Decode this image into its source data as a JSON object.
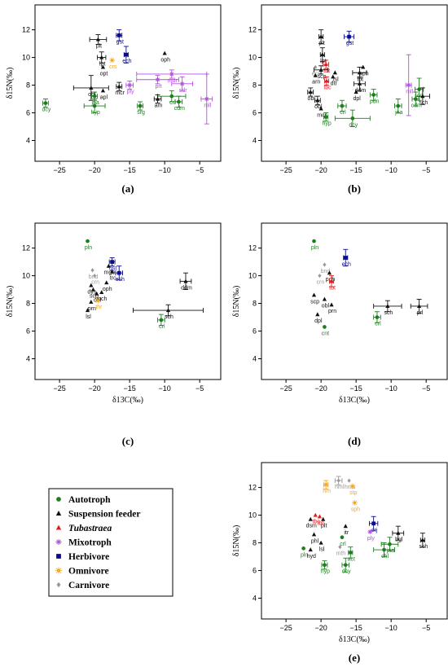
{
  "figure": {
    "x_axis_label": "δ13C(‰)",
    "y_axis_label": "δ15N(‰)",
    "x_ticks": [
      -25,
      -20,
      -15,
      -10,
      -5
    ],
    "y_ticks": [
      4,
      6,
      8,
      10,
      12
    ]
  },
  "colors": {
    "Autotroph": "#1e7d1e",
    "Suspension feeder": "#111111",
    "Tubastraea": "#e41a1c",
    "Mixotroph": "#b44fe0",
    "Herbivore": "#0a0a8a",
    "Omnivore": "#f5a623",
    "Carnivore": "#9a9a9a"
  },
  "legend": [
    {
      "group": "Autotroph",
      "label": "Autotroph",
      "icon": "filled-circle-icon",
      "italic": false
    },
    {
      "group": "Suspension feeder",
      "label": "Suspension feeder",
      "icon": "filled-triangle-icon",
      "italic": false
    },
    {
      "group": "Tubastraea",
      "label": "Tubastraea",
      "icon": "filled-triangle-icon",
      "italic": true
    },
    {
      "group": "Mixotroph",
      "label": "Mixotroph",
      "icon": "asterisk-icon",
      "italic": false
    },
    {
      "group": "Herbivore",
      "label": "Herbivore",
      "icon": "filled-square-icon",
      "italic": false
    },
    {
      "group": "Omnivore",
      "label": "Omnivore",
      "icon": "sun-icon",
      "italic": false
    },
    {
      "group": "Carnivore",
      "label": "Carnivore",
      "icon": "diamond-icon",
      "italic": false
    }
  ],
  "chart_data": [
    {
      "type": "scatter",
      "panel": "(a)",
      "xlim": [
        -28.5,
        -2
      ],
      "ylim": [
        2.5,
        13.8
      ],
      "points": [
        {
          "label": "plt",
          "g": "Suspension feeder",
          "x": -19.5,
          "y": 11.3,
          "xe": 1.2,
          "ye": 0.35
        },
        {
          "label": "gst",
          "g": "Herbivore",
          "x": -16.5,
          "y": 11.6,
          "xe": 0.4,
          "ye": 0.4
        },
        {
          "label": "lpt",
          "g": "Suspension feeder",
          "x": -19,
          "y": 10,
          "xe": 0.6,
          "ye": 0.4
        },
        {
          "label": "crs",
          "g": "Omnivore",
          "x": -17.5,
          "y": 9.8
        },
        {
          "label": "ech",
          "g": "Herbivore",
          "x": -15.5,
          "y": 10.2,
          "xe": 0.3,
          "ye": 0.6
        },
        {
          "label": "oph",
          "g": "Suspension feeder",
          "x": -10,
          "y": 10.3
        },
        {
          "label": "opt",
          "g": "Suspension feeder",
          "x": -18.8,
          "y": 9.3
        },
        {
          "label": "mdr",
          "g": "Mixotroph",
          "x": -9,
          "y": 8.8,
          "xe": 5,
          "ye": 0.3
        },
        {
          "label": "obl",
          "g": "Suspension feeder",
          "x": -20.5,
          "y": 7.8,
          "xe": 2.5,
          "ye": 0.9
        },
        {
          "label": "mcr",
          "g": "Suspension feeder",
          "x": -16.5,
          "y": 7.9,
          "xe": 0.4,
          "ye": 0.3
        },
        {
          "label": "sdr",
          "g": "Mixotroph",
          "x": -7.5,
          "y": 8.1,
          "xe": 1.5,
          "ye": 0.5
        },
        {
          "label": "prt",
          "g": "Mixotroph",
          "x": -11,
          "y": 8.4,
          "xe": 3,
          "ye": 0.3
        },
        {
          "label": "ply",
          "g": "Mixotroph",
          "x": -15,
          "y": 8,
          "xe": 0.5,
          "ye": 0.3
        },
        {
          "label": "apl",
          "g": "Suspension feeder",
          "x": -18.8,
          "y": 7.6
        },
        {
          "label": "crl",
          "g": "Autotroph",
          "x": -9,
          "y": 7.2,
          "xe": 2,
          "ye": 0.4
        },
        {
          "label": "jna",
          "g": "Autotroph",
          "x": -20,
          "y": 7.2,
          "xe": 0.4,
          "ye": 0.3
        },
        {
          "label": "am",
          "g": "Suspension feeder",
          "x": -11,
          "y": 7,
          "xe": 0.5,
          "ye": 0.3
        },
        {
          "label": "dcy",
          "g": "Autotroph",
          "x": -27,
          "y": 6.7,
          "xe": 0.4,
          "ye": 0.3
        },
        {
          "label": "hyp",
          "g": "Autotroph",
          "x": -20,
          "y": 6.5,
          "xe": 1.5,
          "ye": 0.5
        },
        {
          "label": "srg",
          "g": "Autotroph",
          "x": -13.5,
          "y": 6.5,
          "xe": 0.4,
          "ye": 0.3
        },
        {
          "label": "cdm",
          "g": "Autotroph",
          "x": -8,
          "y": 6.8,
          "xe": 0.5,
          "ye": 0.4
        },
        {
          "label": "mll",
          "g": "Mixotroph",
          "x": -4,
          "y": 7,
          "xe": 0.8,
          "ye": 1.8
        }
      ]
    },
    {
      "type": "scatter",
      "panel": "(b)",
      "xlim": [
        -28.5,
        -2
      ],
      "ylim": [
        2.5,
        13.8
      ],
      "points": [
        {
          "label": "plt",
          "g": "Suspension feeder",
          "x": -20,
          "y": 11.5,
          "xe": 0.3,
          "ye": 0.5
        },
        {
          "label": "gst",
          "g": "Herbivore",
          "x": -16,
          "y": 11.5,
          "xe": 0.7,
          "ye": 0.4
        },
        {
          "label": "lpt",
          "g": "Suspension feeder",
          "x": -19.8,
          "y": 10.2,
          "xe": 0.3,
          "ye": 0.5
        },
        {
          "label": "ecn",
          "g": "Carnivore",
          "x": -20.8,
          "y": 9.3
        },
        {
          "label": "tbt",
          "g": "Tubastraea",
          "x": -19.3,
          "y": 9.5,
          "xe": 0.4,
          "ye": 0.3
        },
        {
          "label": "oph",
          "g": "Suspension feeder",
          "x": -14,
          "y": 9.3
        },
        {
          "label": "scp",
          "g": "Suspension feeder",
          "x": -20,
          "y": 9.1,
          "xe": 1,
          "ye": 0.3
        },
        {
          "label": "lsl",
          "g": "Suspension feeder",
          "x": -18,
          "y": 8.9
        },
        {
          "label": "lpt",
          "g": "Suspension feeder",
          "x": -14.5,
          "y": 8.9,
          "xe": 1,
          "ye": 0.4
        },
        {
          "label": "arn",
          "g": "Suspension feeder",
          "x": -20.8,
          "y": 8.7
        },
        {
          "label": "dtr",
          "g": "Suspension feeder",
          "x": -18.3,
          "y": 8.6
        },
        {
          "label": "tbc",
          "g": "Tubastraea",
          "x": -19.2,
          "y": 8.3,
          "xe": 0.3,
          "ye": 0.3
        },
        {
          "label": "ddm",
          "g": "Suspension feeder",
          "x": -14.5,
          "y": 8.1,
          "xe": 0.8,
          "ye": 0.5
        },
        {
          "label": "mll",
          "g": "Mixotroph",
          "x": -7.5,
          "y": 8,
          "xe": 0.4,
          "ye": 2.2
        },
        {
          "label": "crl",
          "g": "Autotroph",
          "x": -6,
          "y": 7.7,
          "xe": 0.6,
          "ye": 0.8
        },
        {
          "label": "obl",
          "g": "Suspension feeder",
          "x": -21.5,
          "y": 7.5,
          "xe": 0.4,
          "ye": 0.3
        },
        {
          "label": "dpl",
          "g": "Suspension feeder",
          "x": -15,
          "y": 7.5
        },
        {
          "label": "pdn",
          "g": "Autotroph",
          "x": -12.5,
          "y": 7.3,
          "xe": 0.5,
          "ye": 0.4
        },
        {
          "label": "obl",
          "g": "Suspension feeder",
          "x": -20.5,
          "y": 6.9,
          "xe": 0.4,
          "ye": 0.3
        },
        {
          "label": "crl",
          "g": "Autotroph",
          "x": -17,
          "y": 6.5,
          "xe": 0.6,
          "ye": 0.4
        },
        {
          "label": "jna",
          "g": "Autotroph",
          "x": -9,
          "y": 6.5,
          "xe": 0.5,
          "ye": 0.5
        },
        {
          "label": "sch",
          "g": "Suspension feeder",
          "x": -5.5,
          "y": 7.2,
          "xe": 1,
          "ye": 0.6
        },
        {
          "label": "cdm",
          "g": "Autotroph",
          "x": -6.5,
          "y": 7,
          "xe": 0.5,
          "ye": 0.5
        },
        {
          "label": "mcr",
          "g": "Suspension feeder",
          "x": -20,
          "y": 6.3
        },
        {
          "label": "hyp",
          "g": "Autotroph",
          "x": -19.3,
          "y": 5.7,
          "xe": 0.3,
          "ye": 0.3
        },
        {
          "label": "dcy",
          "g": "Autotroph",
          "x": -15.5,
          "y": 5.6,
          "xe": 2.5,
          "ye": 0.6
        }
      ]
    },
    {
      "type": "scatter",
      "panel": "(c)",
      "xlim": [
        -28.5,
        -2
      ],
      "ylim": [
        2.5,
        13.8
      ],
      "points": [
        {
          "label": "pln",
          "g": "Autotroph",
          "x": -21,
          "y": 12.5
        },
        {
          "label": "gst",
          "g": "Herbivore",
          "x": -17.5,
          "y": 11,
          "xe": 0.4,
          "ye": 0.3
        },
        {
          "label": "mgb",
          "g": "Suspension feeder",
          "x": -18,
          "y": 10.7
        },
        {
          "label": "bnd",
          "g": "Carnivore",
          "x": -20.3,
          "y": 10.4
        },
        {
          "label": "crn",
          "g": "Carnivore",
          "x": -20,
          "y": 10
        },
        {
          "label": "trc",
          "g": "Suspension feeder",
          "x": -17.5,
          "y": 10.3
        },
        {
          "label": "ech",
          "g": "Herbivore",
          "x": -16.5,
          "y": 10.2,
          "xe": 0.5,
          "ye": 0.5
        },
        {
          "label": "ddm",
          "g": "Suspension feeder",
          "x": -7,
          "y": 9.6,
          "xe": 0.8,
          "ye": 0.6
        },
        {
          "label": "oph",
          "g": "Suspension feeder",
          "x": -18.3,
          "y": 9.5
        },
        {
          "label": "dys",
          "g": "Suspension feeder",
          "x": -20.5,
          "y": 9.3
        },
        {
          "label": "scp",
          "g": "Suspension feeder",
          "x": -20.2,
          "y": 9
        },
        {
          "label": "obl",
          "g": "Suspension feeder",
          "x": -19.7,
          "y": 8.7
        },
        {
          "label": "pch",
          "g": "Suspension feeder",
          "x": -19,
          "y": 8.8
        },
        {
          "label": "prn",
          "g": "Suspension feeder",
          "x": -20.5,
          "y": 8.1
        },
        {
          "label": "thr",
          "g": "Omnivore",
          "x": -19.5,
          "y": 8.2
        },
        {
          "label": "lsl",
          "g": "Suspension feeder",
          "x": -21,
          "y": 7.5
        },
        {
          "label": "sch",
          "g": "Suspension feeder",
          "x": -9.5,
          "y": 7.5,
          "xe": 5,
          "ye": 0.4
        },
        {
          "label": "crl",
          "g": "Autotroph",
          "x": -10.5,
          "y": 6.8,
          "xe": 0.5,
          "ye": 0.4
        }
      ]
    },
    {
      "type": "scatter",
      "panel": "(d)",
      "xlim": [
        -28.5,
        -2
      ],
      "ylim": [
        2.5,
        13.8
      ],
      "points": [
        {
          "label": "pln",
          "g": "Autotroph",
          "x": -21,
          "y": 12.5
        },
        {
          "label": "ech",
          "g": "Herbivore",
          "x": -16.5,
          "y": 11.3,
          "xe": 0.3,
          "ye": 0.6
        },
        {
          "label": "bnd",
          "g": "Carnivore",
          "x": -19.5,
          "y": 10.8
        },
        {
          "label": "crn",
          "g": "Carnivore",
          "x": -20.2,
          "y": 10
        },
        {
          "label": "pch",
          "g": "Suspension feeder",
          "x": -18.8,
          "y": 10.2
        },
        {
          "label": "tbt",
          "g": "Tubastraea",
          "x": -18.5,
          "y": 9.6,
          "xe": 0.3,
          "ye": 0.4
        },
        {
          "label": "scp",
          "g": "Suspension feeder",
          "x": -21,
          "y": 8.6
        },
        {
          "label": "obl",
          "g": "Suspension feeder",
          "x": -19.5,
          "y": 8.3
        },
        {
          "label": "sch",
          "g": "Suspension feeder",
          "x": -10.5,
          "y": 7.8,
          "xe": 2,
          "ye": 0.4
        },
        {
          "label": "prl",
          "g": "Suspension feeder",
          "x": -6,
          "y": 7.8,
          "xe": 1.2,
          "ye": 0.5
        },
        {
          "label": "prn",
          "g": "Suspension feeder",
          "x": -18.5,
          "y": 7.9
        },
        {
          "label": "dpl",
          "g": "Suspension feeder",
          "x": -20.5,
          "y": 7.2
        },
        {
          "label": "crl",
          "g": "Autotroph",
          "x": -12,
          "y": 7,
          "xe": 0.5,
          "ye": 0.4
        },
        {
          "label": "cnt",
          "g": "Autotroph",
          "x": -19.5,
          "y": 6.3
        }
      ]
    },
    {
      "type": "scatter",
      "panel": "(e)",
      "xlim": [
        -28.5,
        -2
      ],
      "ylim": [
        2.5,
        13.8
      ],
      "points": [
        {
          "label": "hml",
          "g": "Carnivore",
          "x": -17.5,
          "y": 12.5,
          "xe": 0.5,
          "ye": 0.3
        },
        {
          "label": "hms",
          "g": "Carnivore",
          "x": -16,
          "y": 12.5
        },
        {
          "label": "stp",
          "g": "Omnivore",
          "x": -15.5,
          "y": 12.1
        },
        {
          "label": "hm",
          "g": "Omnivore",
          "x": -19.3,
          "y": 12.2,
          "xe": 0.3,
          "ye": 0.3
        },
        {
          "label": "sph",
          "g": "Omnivore",
          "x": -15.2,
          "y": 10.9
        },
        {
          "label": "tbc",
          "g": "Tubastraea",
          "x": -20.8,
          "y": 10
        },
        {
          "label": "tbt",
          "g": "Tubastraea",
          "x": -20.2,
          "y": 9.9
        },
        {
          "label": "dsm",
          "g": "Suspension feeder",
          "x": -21.5,
          "y": 9.7
        },
        {
          "label": "plt",
          "g": "Suspension feeder",
          "x": -19.7,
          "y": 9.7
        },
        {
          "label": "crj",
          "g": "Herbivore",
          "x": -12.5,
          "y": 9.4,
          "xe": 0.6,
          "ye": 0.5
        },
        {
          "label": "itr",
          "g": "Suspension feeder",
          "x": -16.5,
          "y": 9.2
        },
        {
          "label": "ply",
          "g": "Mixotroph",
          "x": -13,
          "y": 8.8
        },
        {
          "label": "phl",
          "g": "Suspension feeder",
          "x": -21,
          "y": 8.6
        },
        {
          "label": "bgl",
          "g": "Suspension feeder",
          "x": -9,
          "y": 8.7,
          "xe": 0.8,
          "ye": 0.5
        },
        {
          "label": "crl",
          "g": "Autotroph",
          "x": -17,
          "y": 8.4
        },
        {
          "label": "lsl",
          "g": "Suspension feeder",
          "x": -20,
          "y": 8
        },
        {
          "label": "mth",
          "g": "Carnivore",
          "x": -17.3,
          "y": 7.7
        },
        {
          "label": "sch",
          "g": "Suspension feeder",
          "x": -5.5,
          "y": 8.2,
          "xe": 0.3,
          "ye": 0.5
        },
        {
          "label": "jna",
          "g": "Autotroph",
          "x": -10.2,
          "y": 7.9,
          "xe": 1.2,
          "ye": 0.5
        },
        {
          "label": "pln",
          "g": "Autotroph",
          "x": -22.5,
          "y": 7.6
        },
        {
          "label": "hyd",
          "g": "Suspension feeder",
          "x": -21.5,
          "y": 7.5
        },
        {
          "label": "chl",
          "g": "Autotroph",
          "x": -11,
          "y": 7.5,
          "xe": 1.5,
          "ye": 0.5
        },
        {
          "label": "act",
          "g": "Autotroph",
          "x": -15.8,
          "y": 7.3,
          "xe": 0.3,
          "ye": 0.4
        },
        {
          "label": "hyp",
          "g": "Autotroph",
          "x": -19.5,
          "y": 6.4,
          "xe": 0.4,
          "ye": 0.3
        },
        {
          "label": "dcy",
          "g": "Autotroph",
          "x": -16.5,
          "y": 6.4,
          "xe": 0.5,
          "ye": 0.5
        }
      ]
    }
  ]
}
